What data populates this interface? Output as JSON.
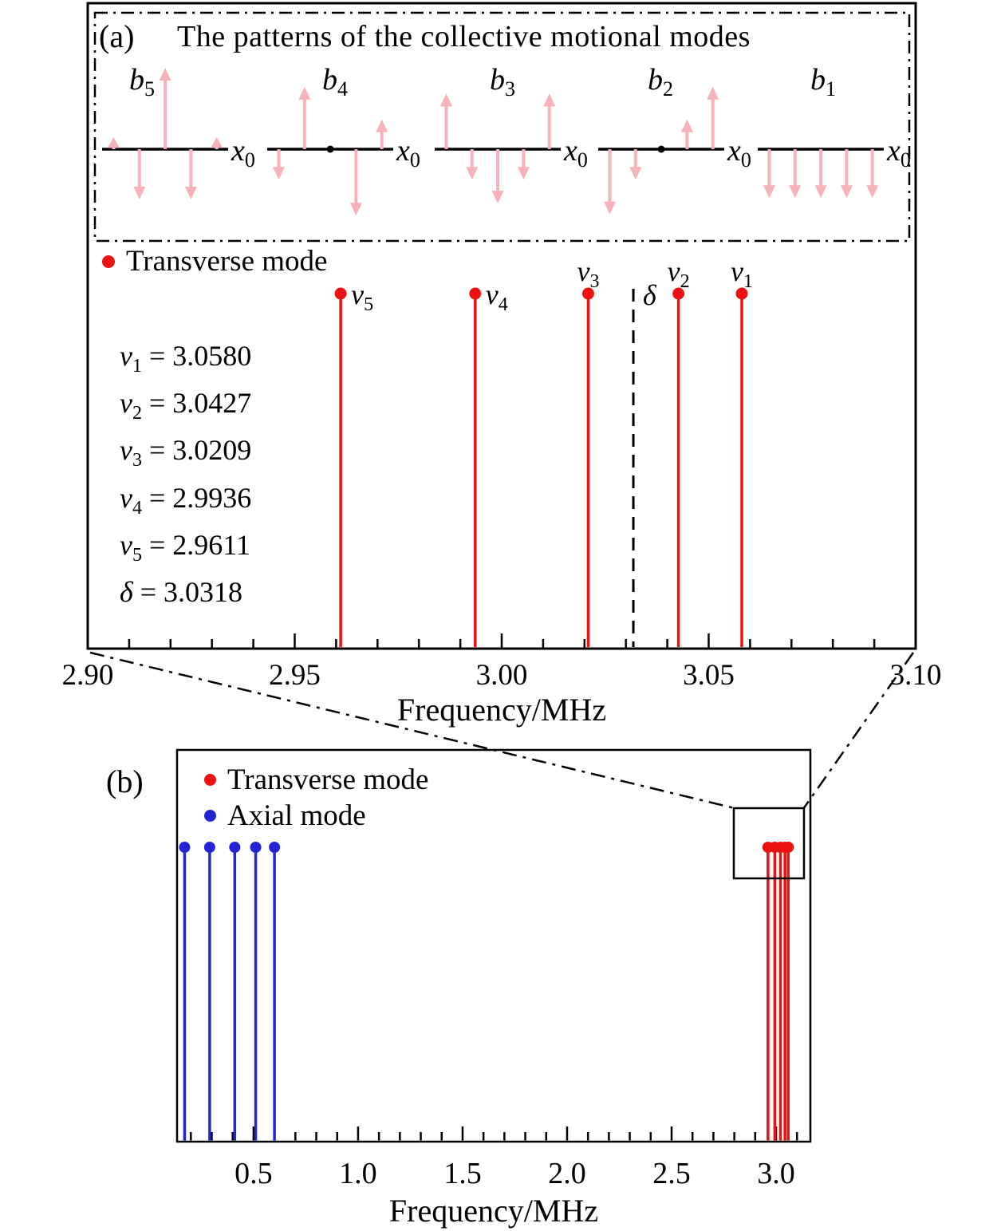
{
  "figure": {
    "colors": {
      "red": "#ee1111",
      "blue": "#2424d6",
      "pink": "#f7b2ba",
      "black": "#000000"
    }
  },
  "panel_a": {
    "label": "(a)",
    "title": "The patterns of the collective motional modes",
    "legend": [
      {
        "label": "Transverse mode",
        "color": "#ee1111"
      }
    ],
    "xlabel": "Frequency/MHz",
    "inset": {
      "x_axis_symbol": {
        "base": "x",
        "sub": "0"
      },
      "patterns": [
        {
          "base": "b",
          "sub": "5",
          "amplitudes": [
            0.18,
            -0.74,
            1.2,
            -0.74,
            0.18
          ]
        },
        {
          "base": "b",
          "sub": "4",
          "amplitudes": [
            -0.45,
            0.92,
            0,
            -0.98,
            0.44
          ]
        },
        {
          "base": "b",
          "sub": "3",
          "amplitudes": [
            0.82,
            -0.45,
            -0.8,
            -0.45,
            0.82
          ]
        },
        {
          "base": "b",
          "sub": "2",
          "amplitudes": [
            -0.96,
            -0.45,
            0,
            0.44,
            0.92
          ]
        },
        {
          "base": "b",
          "sub": "1",
          "amplitudes": [
            -0.72,
            -0.72,
            -0.72,
            -0.72,
            -0.72
          ]
        }
      ]
    },
    "values": [
      {
        "base": "ν",
        "sub": "1",
        "value": "3.0580"
      },
      {
        "base": "ν",
        "sub": "2",
        "value": "3.0427"
      },
      {
        "base": "ν",
        "sub": "3",
        "value": "3.0209"
      },
      {
        "base": "ν",
        "sub": "4",
        "value": "2.9936"
      },
      {
        "base": "ν",
        "sub": "5",
        "value": "2.9611"
      },
      {
        "base": "δ",
        "sub": "",
        "value": "3.0318"
      }
    ]
  },
  "panel_b": {
    "label": "(b)",
    "legend": [
      {
        "label": "Transverse mode",
        "color": "#ee1111"
      },
      {
        "label": "Axial mode",
        "color": "#2424d6"
      }
    ],
    "xlabel": "Frequency/MHz"
  },
  "chart_data": [
    {
      "type": "stem",
      "panel": "a",
      "title": "Transverse motional modes (zoomed view)",
      "xlabel": "Frequency/MHz",
      "xlim": [
        2.9,
        3.1
      ],
      "xticks": [
        "2.90",
        "2.95",
        "3.00",
        "3.05",
        "3.10"
      ],
      "minor_tick_step": 0.01,
      "grid": false,
      "legend_position": "upper-left",
      "series": [
        {
          "name": "Transverse mode",
          "color": "#ee1111",
          "x": [
            2.9611,
            2.9936,
            3.0209,
            3.0427,
            3.058
          ],
          "labels": [
            {
              "base": "ν",
              "sub": "5",
              "pos": "right"
            },
            {
              "base": "ν",
              "sub": "4",
              "pos": "right"
            },
            {
              "base": "ν",
              "sub": "3",
              "pos": "above"
            },
            {
              "base": "ν",
              "sub": "2",
              "pos": "above"
            },
            {
              "base": "ν",
              "sub": "1",
              "pos": "above"
            }
          ]
        }
      ],
      "reference_line": {
        "x": 3.0318,
        "label": {
          "base": "δ",
          "sub": ""
        },
        "style": "dashed"
      }
    },
    {
      "type": "stem",
      "panel": "b",
      "title": "Axial and transverse mode spectrum",
      "xlabel": "Frequency/MHz",
      "xlim": [
        0.134,
        3.164
      ],
      "xticks": [
        "0.5",
        "1.0",
        "1.5",
        "2.0",
        "2.5",
        "3.0"
      ],
      "minor_tick_step": 0.1,
      "grid": false,
      "legend_position": "upper-left",
      "series": [
        {
          "name": "Axial mode",
          "color": "#2424d6",
          "x": [
            0.17,
            0.29,
            0.41,
            0.51,
            0.6
          ]
        },
        {
          "name": "Transverse mode",
          "color": "#ee1111",
          "x": [
            2.9611,
            2.9936,
            3.0209,
            3.0427,
            3.058
          ]
        }
      ],
      "zoom_box_x_range": [
        2.8,
        3.13
      ]
    }
  ]
}
